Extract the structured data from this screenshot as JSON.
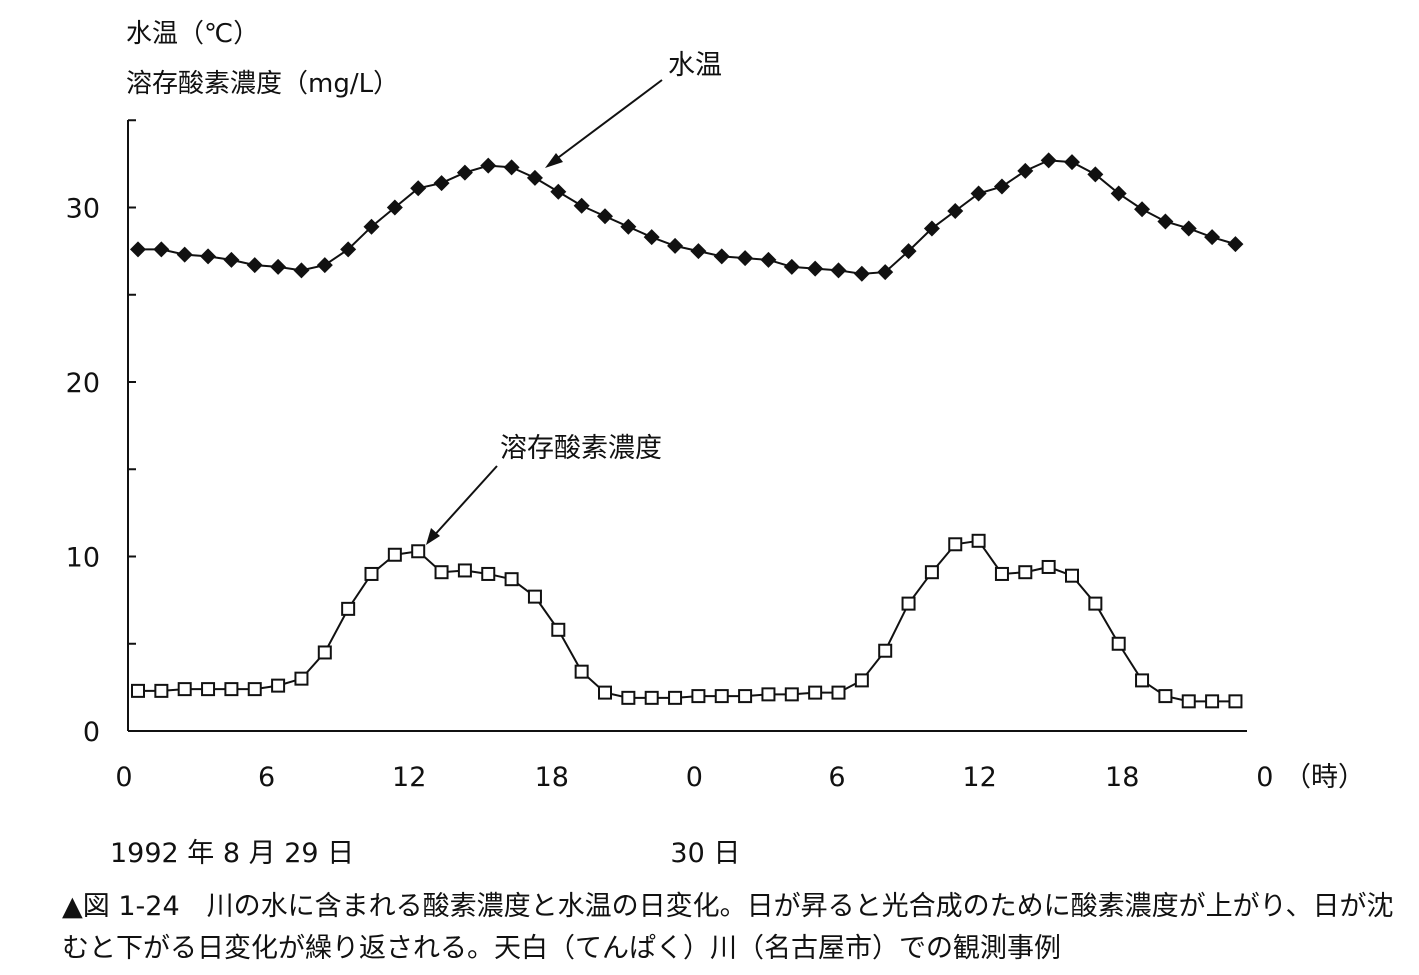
{
  "chart_data": {
    "type": "line",
    "ylabel_lines": [
      "水温（℃）",
      "溶存酸素濃度（mg/L）"
    ],
    "ylim": [
      0,
      35
    ],
    "yticks": [
      "0",
      "10",
      "20",
      "30"
    ],
    "ytick_values": [
      0,
      10,
      20,
      30
    ],
    "xlim": [
      0,
      48
    ],
    "xtick_values": [
      0,
      6,
      12,
      18,
      24,
      30,
      36,
      42,
      48
    ],
    "xtick_labels": [
      "0",
      "6",
      "12",
      "18",
      "0",
      "6",
      "12",
      "18",
      "0"
    ],
    "x_unit": "（時）",
    "date_labels": [
      {
        "x": 0,
        "text": "1992 年 8 月 29 日"
      },
      {
        "x": 24,
        "text": "30 日"
      }
    ],
    "grid": false,
    "series": [
      {
        "name": "水温",
        "marker": "filled-diamond",
        "x": [
          0,
          1,
          2,
          3,
          4,
          5,
          6,
          7,
          8,
          9,
          10,
          11,
          12,
          13,
          14,
          15,
          16,
          17,
          18,
          19,
          20,
          21,
          22,
          23,
          24,
          25,
          26,
          27,
          28,
          29,
          30,
          31,
          32,
          33,
          34,
          35,
          36,
          37,
          38,
          39,
          40,
          41,
          42,
          43,
          44,
          45,
          46,
          47
        ],
        "values": [
          27.6,
          27.6,
          27.3,
          27.2,
          27.0,
          26.7,
          26.6,
          26.4,
          26.7,
          27.6,
          28.9,
          30.0,
          31.1,
          31.4,
          32.0,
          32.4,
          32.3,
          31.7,
          30.9,
          30.1,
          29.5,
          28.9,
          28.3,
          27.8,
          27.5,
          27.2,
          27.1,
          27.0,
          26.6,
          26.5,
          26.4,
          26.2,
          26.3,
          27.5,
          28.8,
          29.8,
          30.8,
          31.2,
          32.1,
          32.7,
          32.6,
          31.9,
          30.8,
          29.9,
          29.2,
          28.8,
          28.3,
          27.9
        ]
      },
      {
        "name": "溶存酸素濃度",
        "marker": "open-square",
        "x": [
          0,
          1,
          2,
          3,
          4,
          5,
          6,
          7,
          8,
          9,
          10,
          11,
          12,
          13,
          14,
          15,
          16,
          17,
          18,
          19,
          20,
          21,
          22,
          23,
          24,
          25,
          26,
          27,
          28,
          29,
          30,
          31,
          32,
          33,
          34,
          35,
          36,
          37,
          38,
          39,
          40,
          41,
          42,
          43,
          44,
          45,
          46,
          47
        ],
        "values": [
          2.3,
          2.3,
          2.4,
          2.4,
          2.4,
          2.4,
          2.6,
          3.0,
          4.5,
          7.0,
          9.0,
          10.1,
          10.3,
          9.1,
          9.2,
          9.0,
          8.7,
          7.7,
          5.8,
          3.4,
          2.2,
          1.9,
          1.9,
          1.9,
          2.0,
          2.0,
          2.0,
          2.1,
          2.1,
          2.2,
          2.2,
          2.9,
          4.6,
          7.3,
          9.1,
          10.7,
          10.9,
          9.0,
          9.1,
          9.4,
          8.9,
          7.3,
          5.0,
          2.9,
          2.0,
          1.7,
          1.7,
          1.7
        ]
      }
    ],
    "annotations": [
      {
        "text": "水温",
        "series": 0
      },
      {
        "text": "溶存酸素濃度",
        "series": 1
      }
    ]
  },
  "caption": "▲図 1-24　川の水に含まれる酸素濃度と水温の日変化。日が昇ると光合成のために酸素濃度が上がり、日が沈むと下がる日変化が繰り返される。天白（てんぱく）川（名古屋市）での観測事例"
}
